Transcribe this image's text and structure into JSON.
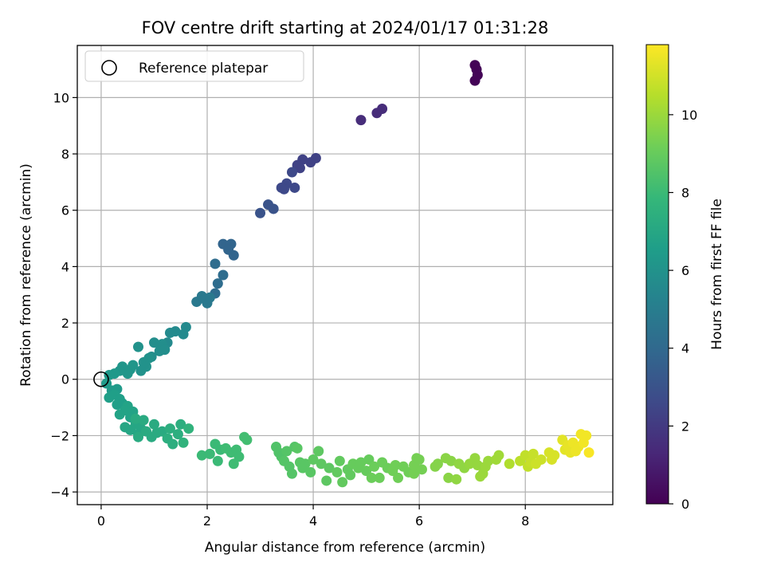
{
  "chart_data": {
    "type": "scatter",
    "title": "FOV centre drift starting at 2024/01/17 01:31:28",
    "xlabel": "Angular distance from reference (arcmin)",
    "ylabel": "Rotation from reference (arcmin)",
    "xlim": [
      -0.45,
      9.65
    ],
    "ylim": [
      -4.45,
      11.85
    ],
    "xticks": [
      0,
      2,
      4,
      6,
      8
    ],
    "yticks": [
      -4,
      -2,
      0,
      2,
      4,
      6,
      8,
      10
    ],
    "grid": true,
    "legend": {
      "position": "top-left",
      "entries": [
        "Reference platepar"
      ]
    },
    "reference_point": {
      "x": 0,
      "y": 0,
      "label": "Reference platepar"
    },
    "colorbar": {
      "label": "Hours from first FF file",
      "colormap": "viridis",
      "range": [
        0,
        11.8
      ],
      "ticks": [
        0,
        2,
        4,
        6,
        8,
        10
      ]
    },
    "points": [
      [
        7.05,
        11.15,
        0.1
      ],
      [
        7.1,
        10.8,
        0.1
      ],
      [
        7.05,
        10.6,
        0.1
      ],
      [
        7.08,
        11.0,
        0.1
      ],
      [
        4.9,
        9.2,
        1.5
      ],
      [
        5.2,
        9.45,
        1.5
      ],
      [
        5.3,
        9.6,
        1.5
      ],
      [
        4.05,
        7.85,
        2.3
      ],
      [
        3.95,
        7.7,
        2.3
      ],
      [
        3.8,
        7.8,
        2.3
      ],
      [
        3.75,
        7.5,
        2.3
      ],
      [
        3.7,
        7.6,
        2.3
      ],
      [
        3.6,
        7.35,
        2.6
      ],
      [
        3.65,
        6.8,
        2.6
      ],
      [
        3.5,
        6.95,
        2.6
      ],
      [
        3.45,
        6.75,
        2.6
      ],
      [
        3.4,
        6.8,
        2.6
      ],
      [
        3.15,
        6.2,
        3.0
      ],
      [
        3.25,
        6.05,
        3.0
      ],
      [
        3.0,
        5.9,
        3.0
      ],
      [
        2.3,
        4.8,
        3.8
      ],
      [
        2.45,
        4.8,
        3.8
      ],
      [
        2.4,
        4.6,
        3.8
      ],
      [
        2.5,
        4.4,
        3.8
      ],
      [
        2.15,
        4.1,
        4.2
      ],
      [
        2.3,
        3.7,
        4.2
      ],
      [
        2.2,
        3.4,
        4.2
      ],
      [
        2.15,
        3.05,
        4.2
      ],
      [
        1.8,
        2.75,
        4.8
      ],
      [
        1.9,
        2.95,
        4.8
      ],
      [
        2.0,
        2.7,
        4.8
      ],
      [
        1.95,
        2.85,
        4.8
      ],
      [
        2.05,
        2.9,
        4.8
      ],
      [
        1.6,
        1.85,
        5.6
      ],
      [
        1.55,
        1.6,
        5.6
      ],
      [
        1.4,
        1.7,
        5.6
      ],
      [
        1.3,
        1.65,
        5.6
      ],
      [
        1.25,
        1.3,
        5.6
      ],
      [
        1.15,
        1.25,
        5.8
      ],
      [
        1.1,
        1.0,
        5.8
      ],
      [
        1.0,
        1.3,
        5.8
      ],
      [
        0.95,
        0.8,
        5.8
      ],
      [
        1.2,
        1.05,
        5.8
      ],
      [
        0.9,
        0.75,
        6.0
      ],
      [
        0.8,
        0.6,
        6.0
      ],
      [
        0.85,
        0.45,
        6.0
      ],
      [
        0.7,
        1.15,
        6.0
      ],
      [
        0.75,
        0.3,
        6.0
      ],
      [
        0.6,
        0.5,
        6.2
      ],
      [
        0.55,
        0.35,
        6.2
      ],
      [
        0.5,
        0.2,
        6.2
      ],
      [
        0.4,
        0.45,
        6.2
      ],
      [
        0.35,
        0.3,
        6.2
      ],
      [
        0.25,
        0.2,
        6.3
      ],
      [
        0.15,
        0.15,
        6.3
      ],
      [
        0.1,
        -0.15,
        6.4
      ],
      [
        0.2,
        -0.4,
        6.4
      ],
      [
        0.3,
        -0.35,
        6.4
      ],
      [
        0.15,
        -0.65,
        6.6
      ],
      [
        0.25,
        -0.55,
        6.6
      ],
      [
        0.35,
        -0.7,
        6.6
      ],
      [
        0.3,
        -0.9,
        6.6
      ],
      [
        0.4,
        -0.85,
        6.6
      ],
      [
        0.5,
        -0.95,
        6.8
      ],
      [
        0.45,
        -1.1,
        6.8
      ],
      [
        0.35,
        -1.25,
        6.8
      ],
      [
        0.6,
        -1.15,
        6.8
      ],
      [
        0.55,
        -1.35,
        6.8
      ],
      [
        0.45,
        -1.7,
        7.0
      ],
      [
        0.55,
        -1.8,
        7.0
      ],
      [
        0.65,
        -1.6,
        7.0
      ],
      [
        0.75,
        -1.75,
        7.0
      ],
      [
        0.7,
        -1.95,
        7.0
      ],
      [
        0.85,
        -1.85,
        7.2
      ],
      [
        0.95,
        -2.05,
        7.2
      ],
      [
        1.05,
        -1.9,
        7.2
      ],
      [
        1.0,
        -1.6,
        7.2
      ],
      [
        1.15,
        -1.85,
        7.2
      ],
      [
        1.25,
        -2.1,
        7.4
      ],
      [
        1.3,
        -1.75,
        7.4
      ],
      [
        1.35,
        -2.3,
        7.4
      ],
      [
        1.45,
        -1.95,
        7.4
      ],
      [
        1.5,
        -1.6,
        7.4
      ],
      [
        1.55,
        -2.25,
        7.6
      ],
      [
        1.65,
        -1.75,
        7.6
      ],
      [
        0.65,
        -1.4,
        7.2
      ],
      [
        0.8,
        -1.45,
        7.2
      ],
      [
        0.7,
        -2.05,
        7.2
      ],
      [
        1.9,
        -2.7,
        8.0
      ],
      [
        2.05,
        -2.65,
        8.0
      ],
      [
        2.15,
        -2.3,
        8.0
      ],
      [
        2.25,
        -2.5,
        8.0
      ],
      [
        2.2,
        -2.9,
        8.0
      ],
      [
        2.35,
        -2.45,
        8.1
      ],
      [
        2.45,
        -2.6,
        8.1
      ],
      [
        2.55,
        -2.5,
        8.1
      ],
      [
        2.5,
        -3.0,
        8.1
      ],
      [
        2.6,
        -2.75,
        8.1
      ],
      [
        2.7,
        -2.05,
        8.2
      ],
      [
        2.75,
        -2.15,
        8.2
      ],
      [
        3.3,
        -2.4,
        8.5
      ],
      [
        3.35,
        -2.6,
        8.5
      ],
      [
        3.4,
        -2.75,
        8.5
      ],
      [
        3.45,
        -2.9,
        8.6
      ],
      [
        3.5,
        -2.55,
        8.6
      ],
      [
        3.55,
        -3.1,
        8.6
      ],
      [
        3.6,
        -3.35,
        8.6
      ],
      [
        3.65,
        -2.4,
        8.6
      ],
      [
        3.7,
        -2.45,
        8.7
      ],
      [
        3.75,
        -2.95,
        8.7
      ],
      [
        3.8,
        -3.15,
        8.7
      ],
      [
        3.85,
        -3.0,
        8.7
      ],
      [
        3.95,
        -3.3,
        8.7
      ],
      [
        4.0,
        -2.85,
        8.8
      ],
      [
        4.1,
        -2.55,
        8.8
      ],
      [
        4.15,
        -3.0,
        8.8
      ],
      [
        4.25,
        -3.6,
        8.8
      ],
      [
        4.3,
        -3.15,
        8.8
      ],
      [
        4.45,
        -3.3,
        8.9
      ],
      [
        4.5,
        -2.9,
        8.9
      ],
      [
        4.55,
        -3.65,
        8.9
      ],
      [
        4.65,
        -3.2,
        8.9
      ],
      [
        4.7,
        -3.4,
        8.9
      ],
      [
        4.75,
        -3.0,
        9.0
      ],
      [
        4.85,
        -3.15,
        9.0
      ],
      [
        4.9,
        -2.95,
        9.0
      ],
      [
        5.0,
        -3.25,
        9.0
      ],
      [
        5.05,
        -2.85,
        9.0
      ],
      [
        5.1,
        -3.5,
        9.1
      ],
      [
        5.15,
        -3.1,
        9.1
      ],
      [
        5.25,
        -3.5,
        9.1
      ],
      [
        5.3,
        -2.95,
        9.1
      ],
      [
        5.4,
        -3.15,
        9.1
      ],
      [
        5.5,
        -3.25,
        9.2
      ],
      [
        5.55,
        -3.05,
        9.2
      ],
      [
        5.6,
        -3.5,
        9.2
      ],
      [
        5.7,
        -3.1,
        9.2
      ],
      [
        5.8,
        -3.3,
        9.2
      ],
      [
        5.9,
        -3.05,
        9.3
      ],
      [
        5.95,
        -2.8,
        9.3
      ],
      [
        6.0,
        -2.85,
        9.3
      ],
      [
        5.9,
        -3.35,
        9.3
      ],
      [
        6.05,
        -3.2,
        9.3
      ],
      [
        6.3,
        -3.1,
        9.6
      ],
      [
        6.35,
        -3.0,
        9.6
      ],
      [
        6.5,
        -2.8,
        9.7
      ],
      [
        6.55,
        -3.5,
        9.7
      ],
      [
        6.6,
        -2.9,
        9.7
      ],
      [
        6.7,
        -3.55,
        9.8
      ],
      [
        6.75,
        -3.0,
        9.8
      ],
      [
        6.85,
        -3.15,
        9.8
      ],
      [
        6.95,
        -3.0,
        9.9
      ],
      [
        7.05,
        -2.8,
        9.9
      ],
      [
        7.1,
        -3.05,
        9.9
      ],
      [
        7.2,
        -3.35,
        10.0
      ],
      [
        7.25,
        -3.1,
        10.0
      ],
      [
        7.3,
        -2.9,
        10.0
      ],
      [
        7.45,
        -2.85,
        10.1
      ],
      [
        7.5,
        -2.7,
        10.1
      ],
      [
        7.15,
        -3.45,
        10.0
      ],
      [
        7.7,
        -3.0,
        10.4
      ],
      [
        7.9,
        -2.9,
        10.6
      ],
      [
        8.0,
        -2.7,
        10.7
      ],
      [
        8.05,
        -3.1,
        10.7
      ],
      [
        8.1,
        -2.95,
        10.8
      ],
      [
        8.15,
        -2.65,
        10.8
      ],
      [
        8.2,
        -3.0,
        10.9
      ],
      [
        8.3,
        -2.85,
        10.9
      ],
      [
        8.45,
        -2.6,
        11.1
      ],
      [
        8.5,
        -2.85,
        11.1
      ],
      [
        8.55,
        -2.7,
        11.1
      ],
      [
        8.7,
        -2.15,
        11.3
      ],
      [
        8.75,
        -2.5,
        11.3
      ],
      [
        8.8,
        -2.35,
        11.4
      ],
      [
        8.85,
        -2.6,
        11.4
      ],
      [
        8.9,
        -2.25,
        11.5
      ],
      [
        8.95,
        -2.55,
        11.5
      ],
      [
        9.0,
        -2.4,
        11.5
      ],
      [
        9.05,
        -1.95,
        11.6
      ],
      [
        9.1,
        -2.25,
        11.6
      ],
      [
        9.15,
        -2.0,
        11.6
      ],
      [
        9.2,
        -2.6,
        11.7
      ]
    ]
  }
}
